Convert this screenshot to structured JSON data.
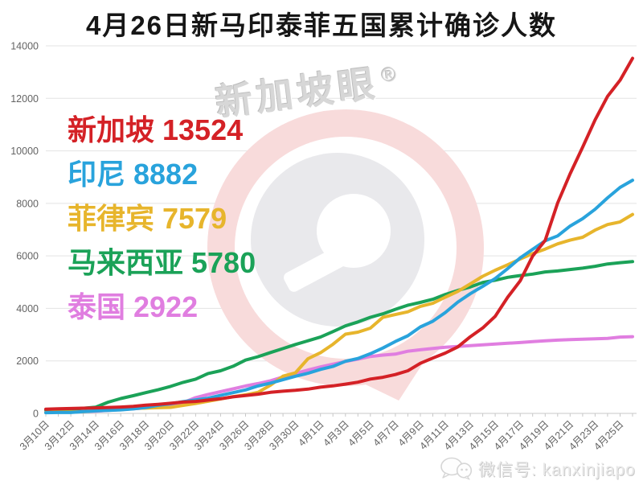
{
  "title": "4月26日新马印泰菲五国累计确诊人数",
  "watermark": {
    "brand": "新加坡眼",
    "registered": "®"
  },
  "footer": {
    "wechat_label": "微信号: kanxinjiapo"
  },
  "colors": {
    "grid": "#e3e3e3",
    "axis": "#c8c8c8",
    "tick_label": "#636363",
    "title": "#161616",
    "watermark_pink": "#f8dbdb",
    "watermark_gray": "#e9e9ec"
  },
  "chart_data": {
    "type": "line",
    "title": "4月26日新马印泰菲五国累计确诊人数",
    "xlabel": "",
    "ylabel": "",
    "ylim": [
      0,
      14000
    ],
    "ytick_interval": 2000,
    "grid": true,
    "legend_position": "upper-left-inside",
    "x_tick_step": 2,
    "x": [
      "3月10日",
      "3月11日",
      "3月12日",
      "3月13日",
      "3月14日",
      "3月15日",
      "3月16日",
      "3月17日",
      "3月18日",
      "3月19日",
      "3月20日",
      "3月21日",
      "3月22日",
      "3月23日",
      "3月24日",
      "3月25日",
      "3月26日",
      "3月27日",
      "3月28日",
      "3月29日",
      "3月30日",
      "3月31日",
      "4月1日",
      "4月2日",
      "4月3日",
      "4月4日",
      "4月5日",
      "4月6日",
      "4月7日",
      "4月8日",
      "4月9日",
      "4月10日",
      "4月11日",
      "4月12日",
      "4月13日",
      "4月14日",
      "4月15日",
      "4月16日",
      "4月17日",
      "4月18日",
      "4月19日",
      "4月20日",
      "4月21日",
      "4月22日",
      "4月23日",
      "4月24日",
      "4月25日",
      "4月26日"
    ],
    "series": [
      {
        "id": "singapore",
        "name": "新加坡",
        "value_label": "13524",
        "color": "#d42126",
        "values": [
          160,
          178,
          187,
          200,
          212,
          226,
          243,
          266,
          313,
          345,
          385,
          432,
          455,
          509,
          558,
          631,
          683,
          732,
          802,
          844,
          879,
          926,
          1000,
          1049,
          1114,
          1189,
          1309,
          1375,
          1481,
          1623,
          1910,
          2108,
          2299,
          2532,
          2918,
          3252,
          3699,
          4427,
          5050,
          5992,
          6588,
          8014,
          9125,
          10141,
          11178,
          12075,
          12693,
          13524
        ]
      },
      {
        "id": "indonesia",
        "name": "印尼",
        "value_label": "8882",
        "color": "#29a3dc",
        "values": [
          27,
          34,
          34,
          69,
          96,
          117,
          134,
          172,
          227,
          309,
          369,
          450,
          514,
          579,
          686,
          790,
          893,
          1046,
          1155,
          1285,
          1414,
          1528,
          1677,
          1790,
          1986,
          2092,
          2273,
          2491,
          2738,
          2956,
          3293,
          3512,
          3842,
          4241,
          4557,
          4839,
          5136,
          5516,
          5923,
          6248,
          6575,
          6760,
          7135,
          7418,
          7775,
          8211,
          8607,
          8882
        ]
      },
      {
        "id": "philippines",
        "name": "菲律宾",
        "value_label": "7579",
        "color": "#e7b52c",
        "values": [
          33,
          49,
          52,
          64,
          111,
          140,
          142,
          187,
          202,
          217,
          230,
          307,
          380,
          462,
          552,
          636,
          707,
          803,
          1075,
          1418,
          1546,
          2084,
          2311,
          2633,
          3018,
          3094,
          3246,
          3660,
          3764,
          3870,
          4076,
          4195,
          4428,
          4648,
          4932,
          5223,
          5453,
          5660,
          5878,
          6087,
          6259,
          6459,
          6599,
          6710,
          6981,
          7192,
          7294,
          7579
        ]
      },
      {
        "id": "malaysia",
        "name": "马来西亚",
        "value_label": "5780",
        "color": "#1ba258",
        "values": [
          129,
          149,
          158,
          197,
          238,
          428,
          566,
          673,
          790,
          900,
          1030,
          1183,
          1306,
          1518,
          1624,
          1796,
          2031,
          2161,
          2320,
          2470,
          2626,
          2766,
          2908,
          3116,
          3333,
          3483,
          3662,
          3793,
          3963,
          4119,
          4228,
          4346,
          4530,
          4683,
          4817,
          4987,
          5072,
          5182,
          5251,
          5305,
          5389,
          5425,
          5482,
          5532,
          5603,
          5691,
          5742,
          5780
        ]
      },
      {
        "id": "thailand",
        "name": "泰国",
        "value_label": "2922",
        "color": "#e07ee0",
        "values": [
          53,
          59,
          70,
          75,
          82,
          114,
          147,
          177,
          212,
          272,
          322,
          411,
          599,
          721,
          827,
          934,
          1045,
          1136,
          1245,
          1388,
          1524,
          1651,
          1771,
          1875,
          1978,
          2067,
          2169,
          2220,
          2258,
          2369,
          2423,
          2473,
          2518,
          2551,
          2579,
          2613,
          2643,
          2672,
          2700,
          2733,
          2765,
          2792,
          2811,
          2826,
          2839,
          2854,
          2907,
          2922
        ]
      }
    ]
  }
}
